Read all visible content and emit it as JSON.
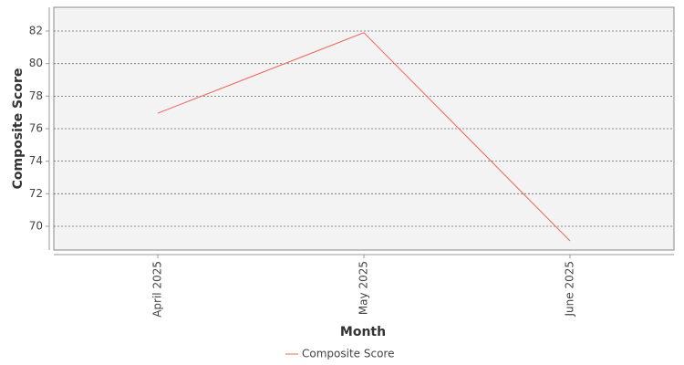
{
  "chart_data": {
    "type": "line",
    "x_label": "Month",
    "y_label": "Composite Score",
    "categories": [
      "April 2025",
      "May 2025",
      "June 2025"
    ],
    "series": [
      {
        "name": "Composite Score",
        "color": "#f0645a",
        "values": [
          76.95,
          81.9,
          69.1
        ]
      }
    ],
    "ylim": [
      68.54,
      83.46
    ],
    "yticks": [
      70,
      72,
      74,
      76,
      78,
      80,
      82
    ],
    "grid": true,
    "legend": "bottom"
  }
}
